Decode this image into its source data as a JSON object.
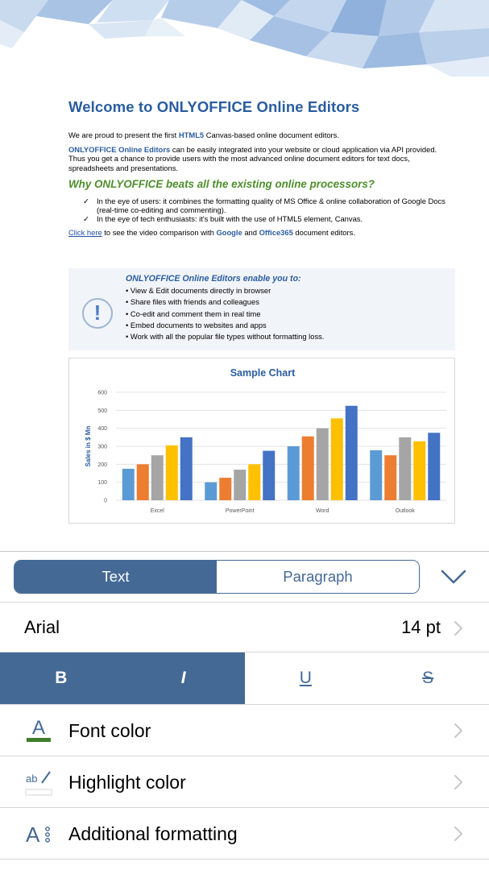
{
  "document": {
    "title": "Welcome to ONLYOFFICE Online Editors",
    "intro_prefix": "We are proud to present the first ",
    "intro_bold": "HTML5",
    "intro_suffix": " Canvas-based online document editors.",
    "para2_bold": "ONLYOFFICE Online Editors",
    "para2_rest": " can be easily integrated into your website or cloud application via API provided. Thus you get a chance to provide users with the most advanced online document editors for text docs, spreadsheets and presentations.",
    "heading2": "Why ONLYOFFICE beats all the existing online processors?",
    "checks": [
      "In the eye of users: it combines the formatting quality of MS Office & online collaboration of Google Docs (real-time co-editing and commenting).",
      "In the eye of tech enthusiasts: it's built with the use of HTML5 element, Canvas."
    ],
    "link_text": "Click here",
    "link_mid": " to see the video comparison with ",
    "google": "Google",
    "and": " and ",
    "office365": "Office365",
    "link_end": " document editors.",
    "note_title": "ONLYOFFICE Online Editors enable you to:",
    "note_items": [
      "• View & Edit documents directly in browser",
      "• Share files with friends and colleagues",
      "• Co-edit and comment them in real time",
      "• Embed documents to websites and apps",
      "• Work with all the popular file types without formatting loss."
    ],
    "note_icon": "!"
  },
  "chart_data": {
    "type": "bar",
    "title": "Sample Chart",
    "ylabel": "Sales in $ Mn",
    "xlabel": "",
    "categories": [
      "Excel",
      "PowerPoint",
      "Word",
      "Outlook"
    ],
    "yticks": [
      0,
      100,
      200,
      300,
      400,
      500,
      600
    ],
    "ylim": [
      0,
      600
    ],
    "grid": true,
    "series": [
      {
        "values": [
          175,
          100,
          300,
          278
        ],
        "color": "#5b9bd5"
      },
      {
        "values": [
          200,
          125,
          355,
          250
        ],
        "color": "#ed7d31"
      },
      {
        "values": [
          250,
          170,
          400,
          350
        ],
        "color": "#a5a5a5"
      },
      {
        "values": [
          305,
          200,
          455,
          328
        ],
        "color": "#ffc000"
      },
      {
        "values": [
          350,
          275,
          525,
          375
        ],
        "color": "#4472c4"
      }
    ]
  },
  "panel": {
    "tabs": [
      {
        "label": "Text",
        "active": true
      },
      {
        "label": "Paragraph",
        "active": false
      }
    ],
    "collapse_icon": "chevron-down-icon",
    "font_name": "Arial",
    "font_size": "14 pt",
    "styles": {
      "bold": "B",
      "italic": "I",
      "underline": "U",
      "strike": "S"
    },
    "rows": [
      {
        "label": "Font color",
        "icon": "font-color-icon",
        "swatch": "#3f7d2b"
      },
      {
        "label": "Highlight color",
        "icon": "highlight-color-icon"
      },
      {
        "label": "Additional formatting",
        "icon": "additional-formatting-icon"
      }
    ],
    "accent": "#446995"
  }
}
